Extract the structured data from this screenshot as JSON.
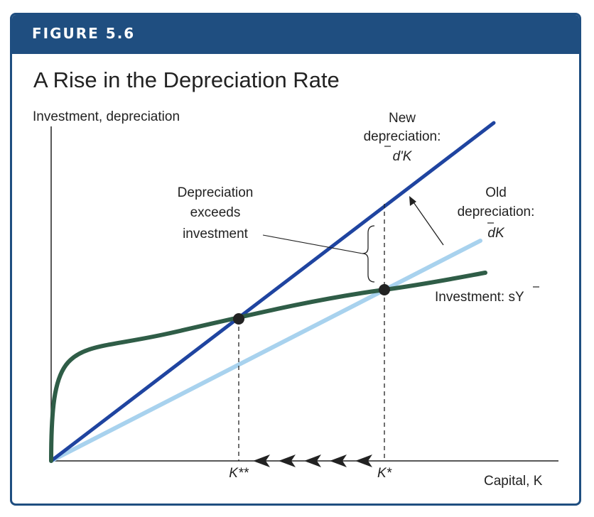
{
  "header": {
    "figure_label": "FIGURE 5.6",
    "title": "A Rise in the Depreciation Rate"
  },
  "colors": {
    "band": "#1f4e80",
    "new_depreciation": "#1f44a0",
    "old_depreciation": "#a8d2ee",
    "investment": "#2f5d47",
    "text": "#222222"
  },
  "chart_data": {
    "type": "line",
    "ylabel": "Investment, depreciation",
    "xlabel": "Capital, K",
    "x_ticks": [
      "K**",
      "K*"
    ],
    "series": [
      {
        "name": "New depreciation: d'K",
        "label_lines": [
          "New",
          "depreciation:",
          "d'K"
        ]
      },
      {
        "name": "Old depreciation: dK",
        "label_lines": [
          "Old",
          "depreciation:",
          "dK"
        ]
      },
      {
        "name": "Investment: sY",
        "label_lines": [
          "Investment: sY"
        ]
      }
    ],
    "annotation": {
      "lines": [
        "Depreciation",
        "exceeds",
        "investment"
      ]
    },
    "arrows_toward": "K**",
    "arrow_count": 5
  }
}
